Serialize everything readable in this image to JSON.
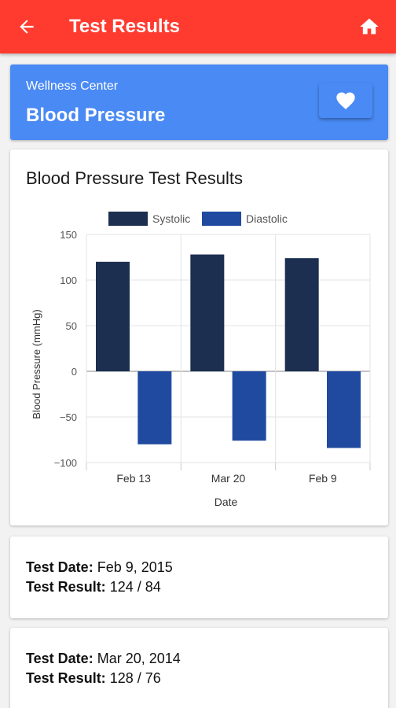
{
  "appbar": {
    "title": "Test Results",
    "back_icon": "arrow-left-icon",
    "home_icon": "home-icon"
  },
  "header": {
    "subtitle": "Wellness Center",
    "title": "Blood Pressure",
    "favorite_icon": "heart-icon"
  },
  "chart_card": {
    "title": "Blood Pressure Test Results"
  },
  "chart_data": {
    "type": "bar",
    "categories": [
      "Feb 13",
      "Mar 20",
      "Feb 9"
    ],
    "series": [
      {
        "name": "Systolic",
        "values": [
          120,
          128,
          124
        ],
        "color": "#1c2f50"
      },
      {
        "name": "Diastolic",
        "values": [
          -80,
          -76,
          -84
        ],
        "color": "#1f4aa0"
      }
    ],
    "xlabel": "Date",
    "ylabel": "Blood Pressure (mmHg)",
    "ylim": [
      -100,
      150
    ],
    "yticks": [
      150,
      100,
      50,
      0,
      -50,
      -100
    ],
    "ytick_labels": [
      "150",
      "100",
      "50",
      "0",
      "−50",
      "−100"
    ],
    "grid": true,
    "legend_position": "top"
  },
  "results": [
    {
      "date_label": "Test Date:",
      "date": "Feb 9, 2015",
      "result_label": "Test Result:",
      "result": "124 / 84"
    },
    {
      "date_label": "Test Date:",
      "date": "Mar 20, 2014",
      "result_label": "Test Result:",
      "result": "128 / 76"
    }
  ],
  "colors": {
    "appbar": "#ff3b30",
    "header": "#4a8af4",
    "systolic": "#1c2f50",
    "diastolic": "#1f4aa0"
  }
}
